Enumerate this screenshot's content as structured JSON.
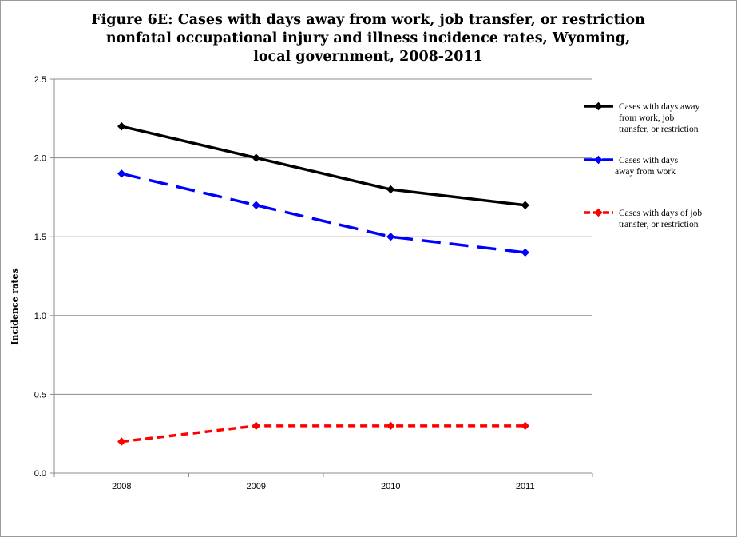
{
  "chart_data": {
    "type": "line",
    "title_lines": [
      "Figure 6E: Cases with days away from work, job transfer, or restriction",
      "nonfatal occupational injury and illness incidence rates, Wyoming,",
      "local government, 2008-2011"
    ],
    "ylabel": "Incidence rates",
    "xlabel": "",
    "categories": [
      "2008",
      "2009",
      "2010",
      "2011"
    ],
    "ylim": [
      0,
      2.5
    ],
    "yticks": [
      "0.0",
      "0.5",
      "1.0",
      "1.5",
      "2.0",
      "2.5"
    ],
    "grid": "horizontal",
    "legend_position": "right",
    "series": [
      {
        "name_lines": [
          "Cases with days away",
          "from work, job",
          "transfer, or restriction"
        ],
        "values": [
          2.2,
          2.0,
          1.8,
          1.7
        ],
        "color": "#000000",
        "style": "solid"
      },
      {
        "name_lines": [
          "Cases with days",
          "away from work"
        ],
        "values": [
          1.9,
          1.7,
          1.5,
          1.4
        ],
        "color": "#0000ff",
        "style": "long-dash"
      },
      {
        "name_lines": [
          "Cases with days of job",
          "transfer, or restriction"
        ],
        "values": [
          0.2,
          0.3,
          0.3,
          0.3
        ],
        "color": "#ff0000",
        "style": "short-dash"
      }
    ]
  }
}
